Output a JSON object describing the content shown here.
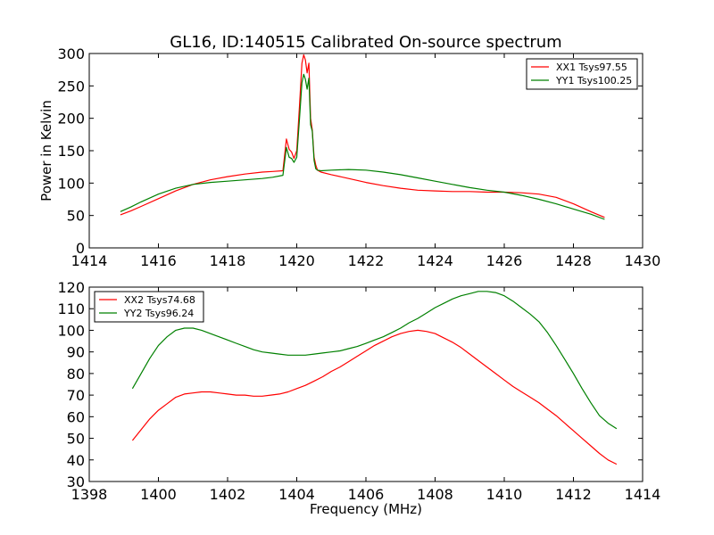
{
  "figure": {
    "title": "GL16, ID:140515 Calibrated On-source spectrum"
  },
  "chart_data": [
    {
      "type": "line",
      "title": "GL16, ID:140515 Calibrated On-source spectrum",
      "xlabel": "",
      "ylabel": "Power in Kelvin",
      "xlim": [
        1414,
        1430
      ],
      "ylim": [
        0,
        300
      ],
      "xticks": [
        1414,
        1416,
        1418,
        1420,
        1422,
        1424,
        1426,
        1428,
        1430
      ],
      "yticks": [
        0,
        50,
        100,
        150,
        200,
        250,
        300
      ],
      "grid": false,
      "legend_position": "top-right",
      "series": [
        {
          "name": "XX1 Tsys97.55",
          "color": "#ff0000",
          "x": [
            1414.9,
            1415.2,
            1415.5,
            1416.0,
            1416.5,
            1417.0,
            1417.5,
            1418.0,
            1418.5,
            1419.0,
            1419.3,
            1419.6,
            1419.7,
            1419.78,
            1419.85,
            1419.92,
            1420.0,
            1420.08,
            1420.15,
            1420.2,
            1420.25,
            1420.3,
            1420.35,
            1420.4,
            1420.45,
            1420.5,
            1420.55,
            1420.6,
            1420.7,
            1421.0,
            1421.5,
            1422.0,
            1422.5,
            1423.0,
            1423.5,
            1424.0,
            1424.5,
            1425.0,
            1425.5,
            1426.0,
            1426.5,
            1427.0,
            1427.5,
            1428.0,
            1428.5,
            1428.9
          ],
          "values": [
            51,
            57,
            64,
            76,
            88,
            98,
            105,
            110,
            114,
            117,
            118,
            119,
            168,
            152,
            148,
            138,
            150,
            220,
            285,
            298,
            290,
            270,
            285,
            200,
            182,
            140,
            128,
            120,
            117,
            113,
            107,
            101,
            96,
            92,
            89,
            88,
            87,
            87,
            86,
            86,
            85,
            83,
            78,
            68,
            56,
            47
          ]
        },
        {
          "name": "YY1 Tsys100.25",
          "color": "#008000",
          "x": [
            1414.9,
            1415.2,
            1415.5,
            1416.0,
            1416.5,
            1417.0,
            1417.5,
            1418.0,
            1418.5,
            1419.0,
            1419.3,
            1419.6,
            1419.7,
            1419.78,
            1419.85,
            1419.92,
            1420.0,
            1420.08,
            1420.15,
            1420.2,
            1420.25,
            1420.3,
            1420.35,
            1420.4,
            1420.45,
            1420.5,
            1420.55,
            1420.6,
            1420.7,
            1421.0,
            1421.5,
            1422.0,
            1422.5,
            1423.0,
            1423.5,
            1424.0,
            1424.5,
            1425.0,
            1425.5,
            1426.0,
            1426.5,
            1427.0,
            1427.5,
            1428.0,
            1428.5,
            1428.9
          ],
          "values": [
            56,
            63,
            71,
            83,
            92,
            98,
            101,
            103,
            105,
            107,
            109,
            112,
            155,
            140,
            138,
            132,
            140,
            200,
            255,
            268,
            260,
            245,
            262,
            190,
            180,
            135,
            122,
            120,
            119,
            120,
            121,
            120,
            117,
            113,
            108,
            103,
            98,
            93,
            89,
            86,
            81,
            75,
            68,
            60,
            52,
            44
          ]
        }
      ]
    },
    {
      "type": "line",
      "title": "",
      "xlabel": "Frequency (MHz)",
      "ylabel": "",
      "xlim": [
        1398,
        1414
      ],
      "ylim": [
        30,
        120
      ],
      "xticks": [
        1398,
        1400,
        1402,
        1404,
        1406,
        1408,
        1410,
        1412,
        1414
      ],
      "yticks": [
        30,
        40,
        50,
        60,
        70,
        80,
        90,
        100,
        110,
        120
      ],
      "grid": false,
      "legend_position": "top-left",
      "series": [
        {
          "name": "XX2 Tsys74.68",
          "color": "#ff0000",
          "x": [
            1399.25,
            1399.5,
            1399.75,
            1400.0,
            1400.25,
            1400.5,
            1400.75,
            1401.0,
            1401.25,
            1401.5,
            1401.75,
            1402.0,
            1402.25,
            1402.5,
            1402.75,
            1403.0,
            1403.25,
            1403.5,
            1403.75,
            1404.0,
            1404.25,
            1404.5,
            1404.75,
            1405.0,
            1405.25,
            1405.5,
            1405.75,
            1406.0,
            1406.25,
            1406.5,
            1406.75,
            1407.0,
            1407.25,
            1407.5,
            1407.75,
            1408.0,
            1408.25,
            1408.5,
            1408.75,
            1409.0,
            1409.25,
            1409.5,
            1409.75,
            1410.0,
            1410.25,
            1410.5,
            1410.75,
            1411.0,
            1411.25,
            1411.5,
            1411.75,
            1412.0,
            1412.25,
            1412.5,
            1412.75,
            1413.0,
            1413.25
          ],
          "values": [
            49,
            54,
            59,
            63,
            66,
            69,
            70.5,
            71,
            71.5,
            71.5,
            71,
            70.5,
            70,
            70,
            69.5,
            69.5,
            70,
            70.5,
            71.5,
            73,
            74.5,
            76.5,
            78.5,
            81,
            83,
            85.5,
            88,
            90.5,
            93,
            95,
            97,
            98.5,
            99.5,
            100,
            99.5,
            98.5,
            96.5,
            94.5,
            92,
            89,
            86,
            83,
            80,
            77,
            74,
            71.5,
            69,
            66.5,
            63.5,
            60.5,
            57,
            53.5,
            50,
            46.5,
            43,
            40,
            38
          ]
        },
        {
          "name": "YY2 Tsys96.24",
          "color": "#008000",
          "x": [
            1399.25,
            1399.5,
            1399.75,
            1400.0,
            1400.25,
            1400.5,
            1400.75,
            1401.0,
            1401.25,
            1401.5,
            1401.75,
            1402.0,
            1402.25,
            1402.5,
            1402.75,
            1403.0,
            1403.25,
            1403.5,
            1403.75,
            1404.0,
            1404.25,
            1404.5,
            1404.75,
            1405.0,
            1405.25,
            1405.5,
            1405.75,
            1406.0,
            1406.25,
            1406.5,
            1406.75,
            1407.0,
            1407.25,
            1407.5,
            1407.75,
            1408.0,
            1408.25,
            1408.5,
            1408.75,
            1409.0,
            1409.25,
            1409.5,
            1409.75,
            1410.0,
            1410.25,
            1410.5,
            1410.75,
            1411.0,
            1411.25,
            1411.5,
            1411.75,
            1412.0,
            1412.25,
            1412.5,
            1412.75,
            1413.0,
            1413.25
          ],
          "values": [
            73,
            80,
            87,
            93,
            97,
            100,
            101,
            101,
            100,
            98.5,
            97,
            95.5,
            94,
            92.5,
            91,
            90,
            89.5,
            89,
            88.5,
            88.5,
            88.5,
            89,
            89.5,
            90,
            90.5,
            91.5,
            92.5,
            94,
            95.5,
            97,
            99,
            101,
            103.5,
            105.5,
            108,
            110.5,
            112.5,
            114.5,
            116,
            117,
            118,
            118,
            117.5,
            116,
            113.5,
            110.5,
            107.5,
            104,
            99,
            93,
            86.5,
            80,
            73,
            66.5,
            60.5,
            57,
            54.5
          ]
        }
      ]
    }
  ]
}
